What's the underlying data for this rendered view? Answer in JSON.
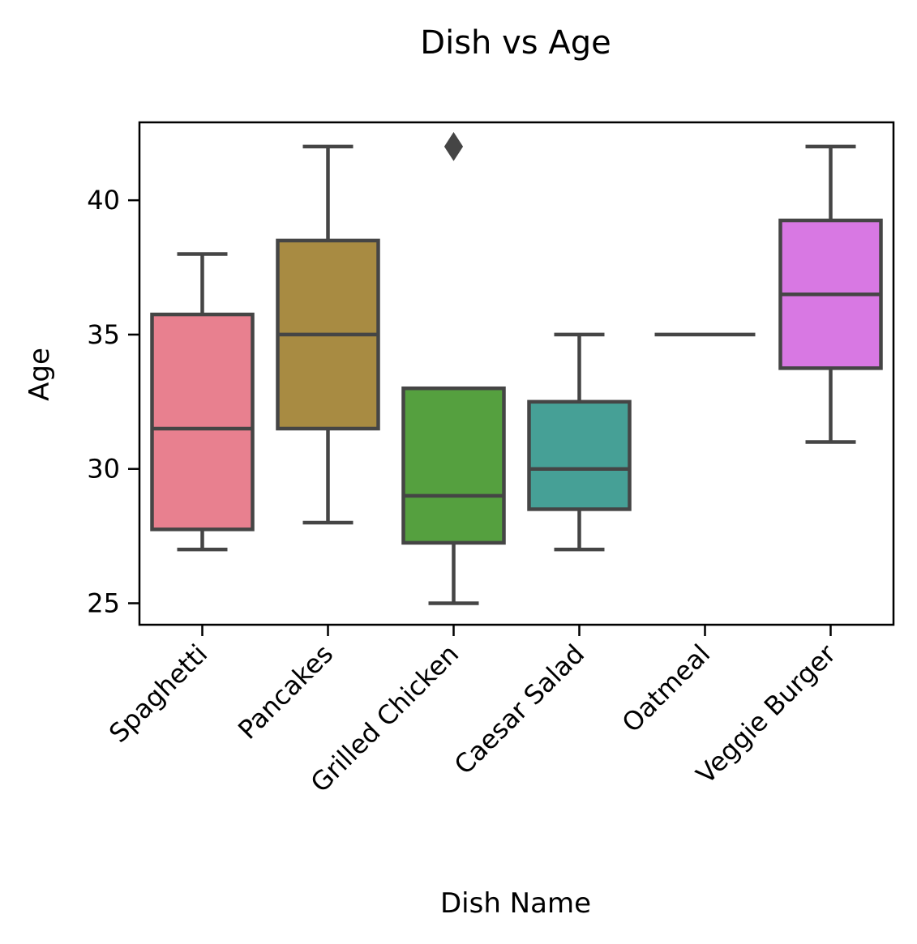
{
  "chart_data": {
    "type": "box",
    "title": "Dish vs Age",
    "xlabel": "Dish Name",
    "ylabel": "Age",
    "ylim": [
      24.2,
      42.9
    ],
    "yticks": [
      25,
      30,
      35,
      40
    ],
    "grid": false,
    "categories": [
      "Spaghetti",
      "Pancakes",
      "Grilled Chicken",
      "Caesar Salad",
      "Oatmeal",
      "Veggie Burger"
    ],
    "boxes": [
      {
        "category": "Spaghetti",
        "whisker_low": 27,
        "q1": 27.75,
        "median": 31.5,
        "q3": 35.75,
        "whisker_high": 38,
        "outliers": [],
        "color": "#e8808f"
      },
      {
        "category": "Pancakes",
        "whisker_low": 28,
        "q1": 31.5,
        "median": 35,
        "q3": 38.5,
        "whisker_high": 42,
        "outliers": [],
        "color": "#a88b42"
      },
      {
        "category": "Grilled Chicken",
        "whisker_low": 25,
        "q1": 27.25,
        "median": 29,
        "q3": 33,
        "whisker_high": 33,
        "outliers": [
          42
        ],
        "color": "#55a03f"
      },
      {
        "category": "Caesar Salad",
        "whisker_low": 27,
        "q1": 28.5,
        "median": 30,
        "q3": 32.5,
        "whisker_high": 35,
        "outliers": [],
        "color": "#46a096"
      },
      {
        "category": "Oatmeal",
        "whisker_low": 35,
        "q1": 35,
        "median": 35,
        "q3": 35,
        "whisker_high": 35,
        "outliers": [],
        "color": "#5f98c8"
      },
      {
        "category": "Veggie Burger",
        "whisker_low": 31,
        "q1": 33.75,
        "median": 36.5,
        "q3": 39.25,
        "whisker_high": 42,
        "outliers": [],
        "color": "#d878e3"
      }
    ],
    "line_color": "#454545"
  }
}
